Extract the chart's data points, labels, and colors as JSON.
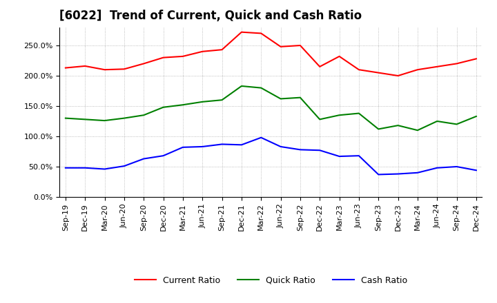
{
  "title": "[6022]  Trend of Current, Quick and Cash Ratio",
  "labels": [
    "Sep-19",
    "Dec-19",
    "Mar-20",
    "Jun-20",
    "Sep-20",
    "Dec-20",
    "Mar-21",
    "Jun-21",
    "Sep-21",
    "Dec-21",
    "Mar-22",
    "Jun-22",
    "Sep-22",
    "Dec-22",
    "Mar-23",
    "Jun-23",
    "Sep-23",
    "Dec-23",
    "Mar-24",
    "Jun-24",
    "Sep-24",
    "Dec-24"
  ],
  "current_ratio": [
    213,
    216,
    210,
    211,
    220,
    230,
    232,
    240,
    243,
    272,
    270,
    248,
    250,
    215,
    232,
    210,
    205,
    200,
    210,
    215,
    220,
    228
  ],
  "quick_ratio": [
    130,
    128,
    126,
    130,
    135,
    148,
    152,
    157,
    160,
    183,
    180,
    162,
    164,
    128,
    135,
    138,
    112,
    118,
    110,
    125,
    120,
    133
  ],
  "cash_ratio": [
    48,
    48,
    46,
    51,
    63,
    68,
    82,
    83,
    87,
    86,
    98,
    83,
    78,
    77,
    67,
    68,
    37,
    38,
    40,
    48,
    50,
    44
  ],
  "ylim": [
    0,
    280
  ],
  "yticks": [
    0,
    50,
    100,
    150,
    200,
    250
  ],
  "current_color": "#ff0000",
  "quick_color": "#008000",
  "cash_color": "#0000ff",
  "bg_color": "#ffffff",
  "grid_color": "#aaaaaa",
  "title_fontsize": 12,
  "tick_fontsize": 8,
  "legend_fontsize": 9,
  "linewidth": 1.5
}
